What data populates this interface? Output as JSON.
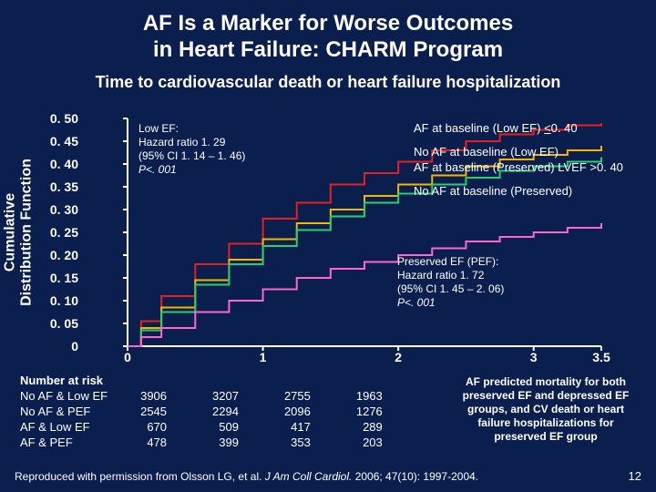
{
  "title": {
    "line1": "AF Is a Marker for Worse Outcomes",
    "line2": "in Heart Failure: CHARM Program"
  },
  "subtitle": "Time to cardiovascular death or heart failure hospitalization",
  "y_axis": {
    "label_line1": "Cumulative",
    "label_line2": "Distribution Function",
    "ticks": [
      "0. 50",
      "0. 45",
      "0. 40",
      "0. 35",
      "0. 30",
      "0. 25",
      "0. 20",
      "0. 15",
      "0. 10",
      "0. 05",
      "0"
    ],
    "min": 0,
    "max": 0.5
  },
  "x_axis": {
    "ticks": [
      {
        "v": 0,
        "l": "0"
      },
      {
        "v": 1,
        "l": "1"
      },
      {
        "v": 2,
        "l": "2"
      },
      {
        "v": 3,
        "l": "3"
      },
      {
        "v": 3.5,
        "l": "3.5"
      }
    ],
    "min": 0,
    "max": 3.5
  },
  "stats_lowef": {
    "l1": "Low EF:",
    "l2": "Hazard ratio 1. 29",
    "l3": "(95% CI 1. 14 – 1. 46)",
    "l4": "P<. 001"
  },
  "stats_pef": {
    "l1": "Preserved EF (PEF):",
    "l2": "Hazard ratio 1. 72",
    "l3": "(95% CI 1. 45 – 2. 06)",
    "l4": "P<. 001"
  },
  "legend": {
    "s1": {
      "label": "AF at baseline (Low EF) ",
      "suffix": "<",
      "tail": "0. 40",
      "color": "#e62020"
    },
    "s2": {
      "label": "No AF at baseline (Low EF)",
      "color": "#f5b400"
    },
    "s3": {
      "label": "AF at baseline (Preserved) LVEF >0. 40",
      "color": "#2ecc71"
    },
    "s4": {
      "label": "No AF at baseline (Preserved)",
      "color": "#ff66cc"
    }
  },
  "series": {
    "s1": {
      "color": "#e62020",
      "width": 2,
      "points": [
        [
          0,
          0
        ],
        [
          0.1,
          0.055
        ],
        [
          0.25,
          0.11
        ],
        [
          0.5,
          0.18
        ],
        [
          0.75,
          0.225
        ],
        [
          1,
          0.28
        ],
        [
          1.25,
          0.315
        ],
        [
          1.5,
          0.355
        ],
        [
          1.75,
          0.38
        ],
        [
          2,
          0.405
        ],
        [
          2.25,
          0.43
        ],
        [
          2.5,
          0.45
        ],
        [
          2.75,
          0.465
        ],
        [
          3,
          0.475
        ],
        [
          3.25,
          0.485
        ],
        [
          3.5,
          0.49
        ]
      ]
    },
    "s2": {
      "color": "#f5b400",
      "width": 2,
      "points": [
        [
          0,
          0
        ],
        [
          0.1,
          0.04
        ],
        [
          0.25,
          0.085
        ],
        [
          0.5,
          0.145
        ],
        [
          0.75,
          0.19
        ],
        [
          1,
          0.235
        ],
        [
          1.25,
          0.27
        ],
        [
          1.5,
          0.3
        ],
        [
          1.75,
          0.33
        ],
        [
          2,
          0.355
        ],
        [
          2.25,
          0.375
        ],
        [
          2.5,
          0.395
        ],
        [
          2.75,
          0.41
        ],
        [
          3,
          0.42
        ],
        [
          3.25,
          0.43
        ],
        [
          3.5,
          0.44
        ]
      ]
    },
    "s3": {
      "color": "#2ecc71",
      "width": 2,
      "points": [
        [
          0,
          0
        ],
        [
          0.1,
          0.035
        ],
        [
          0.25,
          0.075
        ],
        [
          0.5,
          0.135
        ],
        [
          0.75,
          0.18
        ],
        [
          1,
          0.22
        ],
        [
          1.25,
          0.255
        ],
        [
          1.5,
          0.285
        ],
        [
          1.75,
          0.315
        ],
        [
          2,
          0.335
        ],
        [
          2.25,
          0.355
        ],
        [
          2.5,
          0.37
        ],
        [
          2.75,
          0.385
        ],
        [
          3,
          0.395
        ],
        [
          3.25,
          0.405
        ],
        [
          3.5,
          0.415
        ]
      ]
    },
    "s4": {
      "color": "#ff66cc",
      "width": 2,
      "points": [
        [
          0,
          0
        ],
        [
          0.1,
          0.02
        ],
        [
          0.25,
          0.04
        ],
        [
          0.5,
          0.075
        ],
        [
          0.75,
          0.1
        ],
        [
          1,
          0.125
        ],
        [
          1.25,
          0.15
        ],
        [
          1.5,
          0.17
        ],
        [
          1.75,
          0.185
        ],
        [
          2,
          0.2
        ],
        [
          2.25,
          0.215
        ],
        [
          2.5,
          0.23
        ],
        [
          2.75,
          0.24
        ],
        [
          3,
          0.25
        ],
        [
          3.25,
          0.26
        ],
        [
          3.5,
          0.27
        ]
      ]
    }
  },
  "risk_table": {
    "header": "Number at risk",
    "rows": [
      {
        "label": "No AF & Low EF",
        "v": [
          3906,
          3207,
          2755,
          1963
        ]
      },
      {
        "label": "No AF & PEF",
        "v": [
          2545,
          2294,
          2096,
          1276
        ]
      },
      {
        "label": "AF & Low EF",
        "v": [
          670,
          509,
          417,
          289
        ]
      },
      {
        "label": "AF & PEF",
        "v": [
          478,
          399,
          353,
          203
        ]
      }
    ]
  },
  "summary": "AF predicted mortality for both preserved EF and depressed EF groups, and CV death or heart failure hospitalizations for preserved EF group",
  "citation": {
    "pre": "Reproduced with permission from Olsson LG, et al. ",
    "ital": "J Am Coll Cardiol.",
    "post": " 2006; 47(10): 1997-2004."
  },
  "page": "12",
  "style": {
    "background": "#0a1f4d",
    "axis_color": "#ffffff",
    "tick_color": "#ffffff"
  }
}
